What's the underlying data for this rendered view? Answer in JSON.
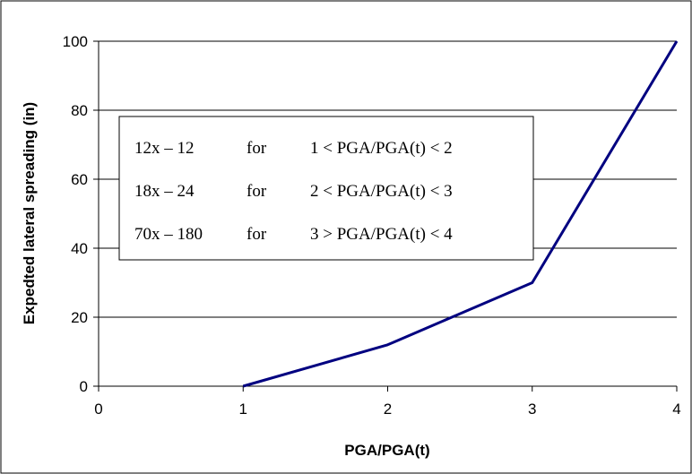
{
  "chart_data": {
    "type": "line",
    "title": "",
    "xlabel": "PGA/PGA(t)",
    "ylabel": "Expedted lateral spreading (in)",
    "xlim": [
      0,
      4
    ],
    "ylim": [
      0,
      100
    ],
    "x_ticks": [
      0,
      1,
      2,
      3,
      4
    ],
    "y_ticks": [
      0,
      20,
      40,
      60,
      80,
      100
    ],
    "grid": {
      "horizontal": true,
      "vertical": false
    },
    "legend": "none",
    "series": [
      {
        "color": "#000080",
        "x": [
          1,
          1.5,
          2,
          2.5,
          3,
          4
        ],
        "y": [
          0,
          6,
          12,
          21,
          30,
          100
        ]
      }
    ],
    "annotation_box": {
      "lines": [
        {
          "formula": "12x – 12",
          "word": "for",
          "condition": "1 < PGA/PGA(t) < 2"
        },
        {
          "formula": "18x – 24",
          "word": "for",
          "condition": "2 < PGA/PGA(t) < 3"
        },
        {
          "formula": "70x – 180",
          "word": "for",
          "condition": "3 > PGA/PGA(t) < 4"
        }
      ]
    }
  }
}
